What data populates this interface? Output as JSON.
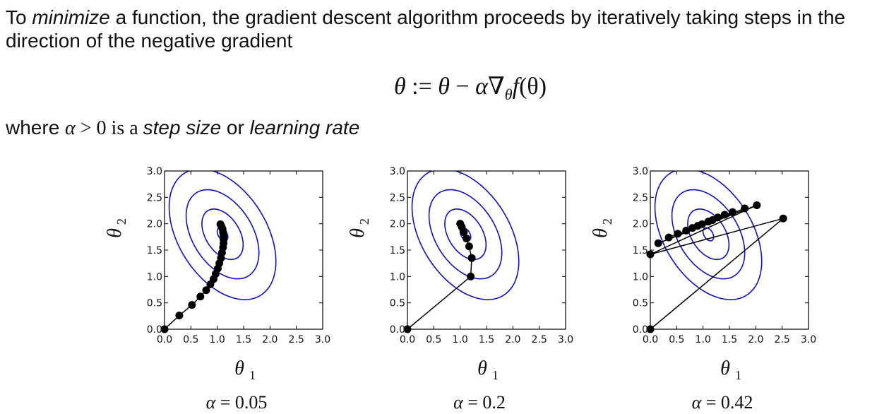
{
  "intro": {
    "prefix": "To ",
    "emph": "minimize",
    "rest": " a function, the gradient descent algorithm proceeds by iteratively taking steps in the direction of the negative gradient"
  },
  "equation": {
    "lhs": "θ",
    "assign": " := ",
    "rhs1": "θ",
    "minus": " − ",
    "alpha": "α",
    "nabla": "∇",
    "nabla_sub": "θ",
    "f": "f",
    "arg": "(θ)"
  },
  "where": {
    "prefix": "where ",
    "cond_var": "α",
    "cond_rest": " > 0 is a ",
    "emph1": "step size",
    "mid": " or ",
    "emph2": "learning rate"
  },
  "colors": {
    "contour": "#1010c0",
    "path": "#000000"
  },
  "chart_data": [
    {
      "type": "line",
      "caption_var": "α",
      "caption_value": "= 0.05",
      "xlabel": "θ",
      "xlabel_sub": "1",
      "ylabel": "θ",
      "ylabel_sub": "2",
      "xlim": [
        0,
        3
      ],
      "ylim": [
        0,
        3
      ],
      "ticks": [
        "0.0",
        "0.5",
        "1.0",
        "1.5",
        "2.0",
        "2.5",
        "3.0"
      ],
      "minimum": [
        1.1,
        1.8
      ],
      "contour_levels": [
        0.22,
        0.85,
        1.5,
        2.2
      ],
      "path": [
        [
          0.0,
          0.0
        ],
        [
          0.28,
          0.26
        ],
        [
          0.52,
          0.46
        ],
        [
          0.68,
          0.62
        ],
        [
          0.79,
          0.74
        ],
        [
          0.87,
          0.85
        ],
        [
          0.93,
          0.95
        ],
        [
          0.97,
          1.05
        ],
        [
          1.01,
          1.15
        ],
        [
          1.04,
          1.25
        ],
        [
          1.07,
          1.35
        ],
        [
          1.09,
          1.45
        ],
        [
          1.11,
          1.55
        ],
        [
          1.12,
          1.63
        ],
        [
          1.12,
          1.7
        ],
        [
          1.12,
          1.77
        ],
        [
          1.11,
          1.84
        ],
        [
          1.1,
          1.9
        ],
        [
          1.08,
          1.95
        ],
        [
          1.06,
          1.99
        ]
      ]
    },
    {
      "type": "line",
      "caption_var": "α",
      "caption_value": "= 0.2",
      "xlabel": "θ",
      "xlabel_sub": "1",
      "ylabel": "θ",
      "ylabel_sub": "2",
      "xlim": [
        0,
        3
      ],
      "ylim": [
        0,
        3
      ],
      "ticks": [
        "0.0",
        "0.5",
        "1.0",
        "1.5",
        "2.0",
        "2.5",
        "3.0"
      ],
      "minimum": [
        1.1,
        1.8
      ],
      "contour_levels": [
        0.22,
        0.85,
        1.5,
        2.2
      ],
      "path": [
        [
          0.0,
          0.0
        ],
        [
          1.2,
          1.0
        ],
        [
          1.22,
          1.35
        ],
        [
          1.17,
          1.57
        ],
        [
          1.12,
          1.72
        ],
        [
          1.07,
          1.84
        ],
        [
          1.03,
          1.94
        ],
        [
          1.0,
          2.0
        ]
      ]
    },
    {
      "type": "line",
      "caption_var": "α",
      "caption_value": "= 0.42",
      "xlabel": "θ",
      "xlabel_sub": "1",
      "ylabel": "θ",
      "ylabel_sub": "2",
      "xlim": [
        0,
        3
      ],
      "ylim": [
        0,
        3
      ],
      "ticks": [
        "0.0",
        "0.5",
        "1.0",
        "1.5",
        "2.0",
        "2.5",
        "3.0"
      ],
      "minimum": [
        1.1,
        1.8
      ],
      "contour_levels": [
        0.22,
        0.85,
        1.5,
        2.2
      ],
      "path": [
        [
          0.0,
          0.0
        ],
        [
          2.52,
          2.1
        ],
        [
          0.0,
          1.42
        ],
        [
          2.02,
          2.35
        ],
        [
          0.15,
          1.63
        ],
        [
          1.79,
          2.29
        ],
        [
          0.35,
          1.74
        ],
        [
          1.56,
          2.22
        ],
        [
          0.52,
          1.81
        ],
        [
          1.41,
          2.17
        ],
        [
          0.68,
          1.87
        ],
        [
          1.28,
          2.12
        ],
        [
          0.8,
          1.92
        ],
        [
          1.18,
          2.07
        ],
        [
          0.9,
          1.96
        ],
        [
          1.1,
          2.04
        ],
        [
          0.98,
          1.99
        ]
      ]
    }
  ]
}
